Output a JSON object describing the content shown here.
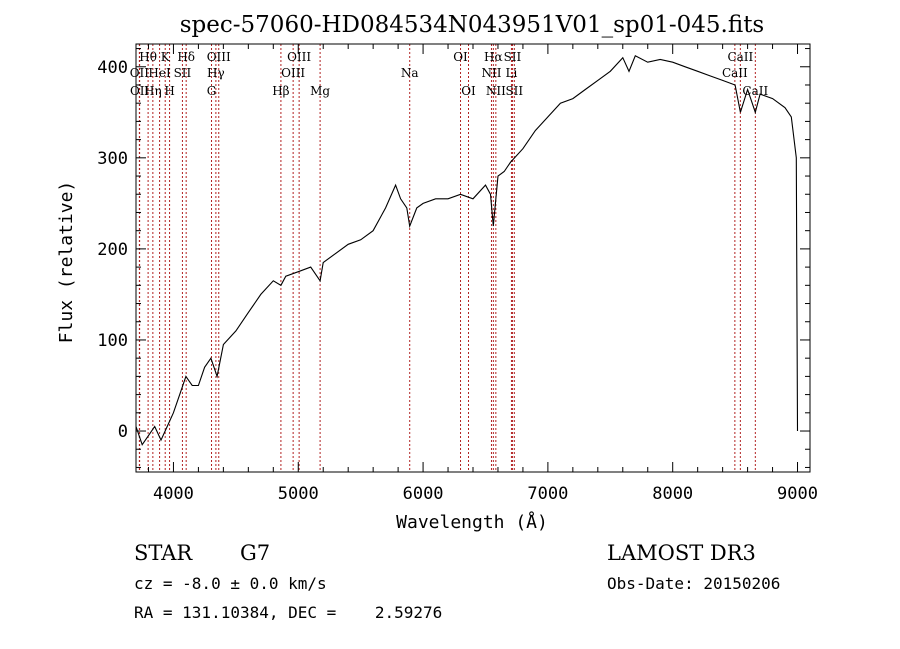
{
  "chart_data": {
    "type": "line",
    "title": "spec-57060-HD084534N043951V01_sp01-045.fits",
    "xlabel": "Wavelength (Å)",
    "ylabel": "Flux (relative)",
    "xlim": [
      3700,
      9100
    ],
    "ylim": [
      -45,
      425
    ],
    "x_ticks": [
      4000,
      5000,
      6000,
      7000,
      8000,
      9000
    ],
    "y_ticks": [
      0,
      100,
      200,
      300,
      400
    ],
    "series": [
      {
        "name": "spectrum",
        "x": [
          3700,
          3750,
          3800,
          3850,
          3900,
          3950,
          4000,
          4050,
          4100,
          4150,
          4200,
          4250,
          4300,
          4350,
          4400,
          4500,
          4600,
          4700,
          4800,
          4861,
          4900,
          5000,
          5100,
          5175,
          5200,
          5300,
          5400,
          5500,
          5600,
          5700,
          5780,
          5820,
          5870,
          5893,
          5950,
          6000,
          6100,
          6200,
          6300,
          6400,
          6500,
          6540,
          6563,
          6600,
          6650,
          6700,
          6800,
          6900,
          7000,
          7100,
          7200,
          7300,
          7400,
          7500,
          7600,
          7650,
          7700,
          7800,
          7900,
          8000,
          8100,
          8200,
          8300,
          8400,
          8500,
          8542,
          8600,
          8662,
          8700,
          8800,
          8900,
          8950,
          8990,
          9000
        ],
        "y": [
          5,
          -15,
          -5,
          5,
          -10,
          5,
          20,
          40,
          60,
          50,
          50,
          70,
          80,
          60,
          95,
          110,
          130,
          150,
          165,
          160,
          170,
          175,
          180,
          165,
          185,
          195,
          205,
          210,
          220,
          245,
          270,
          255,
          245,
          225,
          245,
          250,
          255,
          255,
          260,
          255,
          270,
          260,
          225,
          280,
          285,
          295,
          310,
          330,
          345,
          360,
          365,
          375,
          385,
          395,
          410,
          395,
          412,
          405,
          408,
          405,
          400,
          395,
          390,
          385,
          380,
          350,
          375,
          350,
          370,
          365,
          355,
          345,
          300,
          0
        ]
      }
    ],
    "line_markers": [
      {
        "label": "Hθ",
        "wavelength": 3797,
        "row": 1
      },
      {
        "label": "OII",
        "wavelength": 3727,
        "row": 2
      },
      {
        "label": "OII",
        "wavelength": 3729,
        "row": 3
      },
      {
        "label": "Hη",
        "wavelength": 3835,
        "row": 3
      },
      {
        "label": "K",
        "wavelength": 3934,
        "row": 1
      },
      {
        "label": "HeI",
        "wavelength": 3889,
        "row": 2
      },
      {
        "label": "SII",
        "wavelength": 4072,
        "row": 2
      },
      {
        "label": "H",
        "wavelength": 3969,
        "row": 3
      },
      {
        "label": "Hδ",
        "wavelength": 4102,
        "row": 1
      },
      {
        "label": "OIII",
        "wavelength": 4363,
        "row": 1
      },
      {
        "label": "Hγ",
        "wavelength": 4340,
        "row": 2
      },
      {
        "label": "G",
        "wavelength": 4305,
        "row": 3
      },
      {
        "label": "Hβ",
        "wavelength": 4861,
        "row": 3
      },
      {
        "label": "OIII",
        "wavelength": 5007,
        "row": 1
      },
      {
        "label": "OIII",
        "wavelength": 4959,
        "row": 2
      },
      {
        "label": "Mg",
        "wavelength": 5175,
        "row": 3
      },
      {
        "label": "Na",
        "wavelength": 5893,
        "row": 2
      },
      {
        "label": "OI",
        "wavelength": 6300,
        "row": 1
      },
      {
        "label": "OI",
        "wavelength": 6364,
        "row": 3
      },
      {
        "label": "Hα",
        "wavelength": 6563,
        "row": 1
      },
      {
        "label": "SII",
        "wavelength": 6716,
        "row": 1
      },
      {
        "label": "NII",
        "wavelength": 6548,
        "row": 2
      },
      {
        "label": "Li",
        "wavelength": 6708,
        "row": 2
      },
      {
        "label": "NII",
        "wavelength": 6583,
        "row": 3
      },
      {
        "label": "SII",
        "wavelength": 6731,
        "row": 3
      },
      {
        "label": "CaII",
        "wavelength": 8542,
        "row": 1
      },
      {
        "label": "CaII",
        "wavelength": 8498,
        "row": 2
      },
      {
        "label": "CaII",
        "wavelength": 8662,
        "row": 3
      }
    ]
  },
  "info": {
    "object_class": "STAR",
    "subclass": "G7",
    "redshift": "cz = -8.0 ± 0.0 km/s",
    "coords": "RA = 131.10384, DEC =    2.59276",
    "survey": "LAMOST DR3",
    "obs_date": "Obs-Date: 20150206"
  }
}
